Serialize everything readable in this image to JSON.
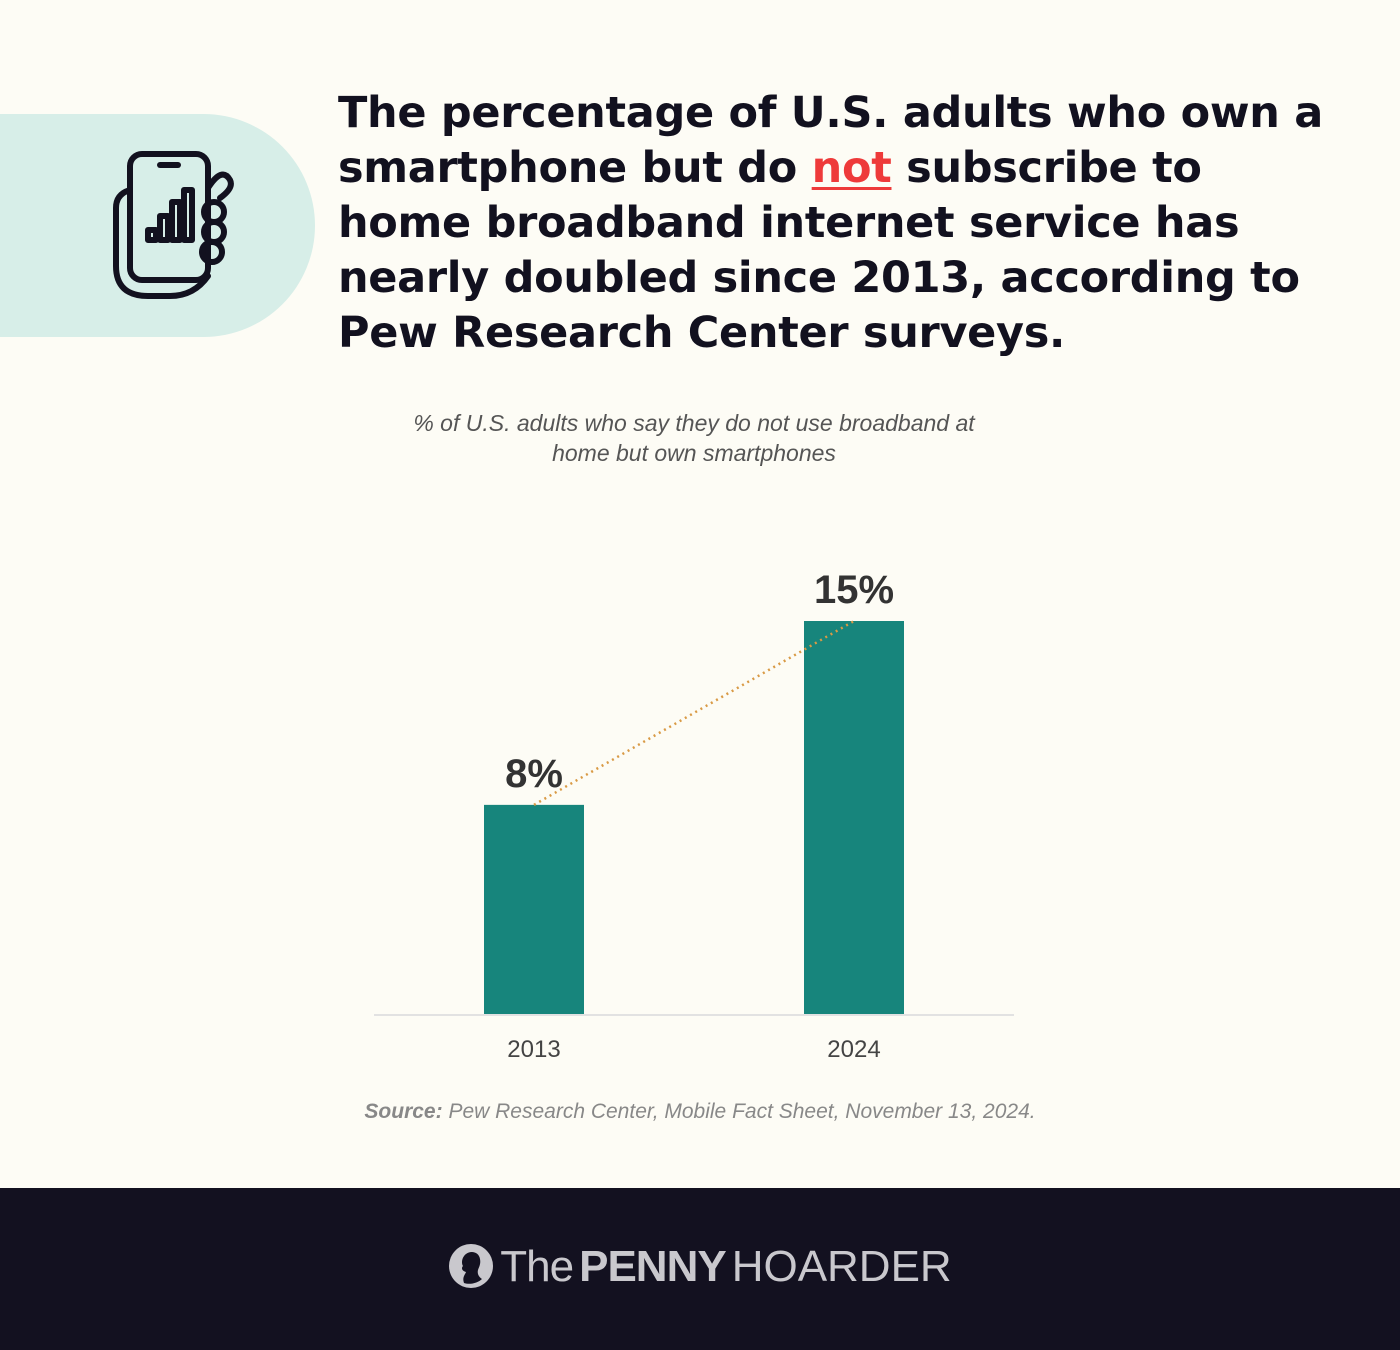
{
  "headline": {
    "part1": "The percentage of U.S. adults who own a smartphone but do ",
    "emphasis": "not",
    "part2": " subscribe to home broadband internet service has nearly doubled since 2013, according to Pew Research Center surveys."
  },
  "icon": "smartphone-hand-signal-icon",
  "colors": {
    "bar": "#17857c",
    "trend_line": "#d99a45",
    "emphasis": "#ee3a3a",
    "footer": "#131120",
    "icon_pill": "#d7eee8"
  },
  "chart_data": {
    "type": "bar",
    "title": "% of U.S. adults who say they do not use broadband at home but own smartphones",
    "categories": [
      "2013",
      "2024"
    ],
    "values": [
      8,
      15
    ],
    "value_labels": [
      "8%",
      "15%"
    ],
    "ylim": [
      0,
      15
    ],
    "grid": false,
    "trend_line": "dotted"
  },
  "source": {
    "label": "Source:",
    "text": "Pew Research Center, Mobile Fact Sheet, November 13, 2024."
  },
  "footer": {
    "logo": {
      "the": "The",
      "penny": "PENNY",
      "hoarder": "HOARDER"
    }
  }
}
